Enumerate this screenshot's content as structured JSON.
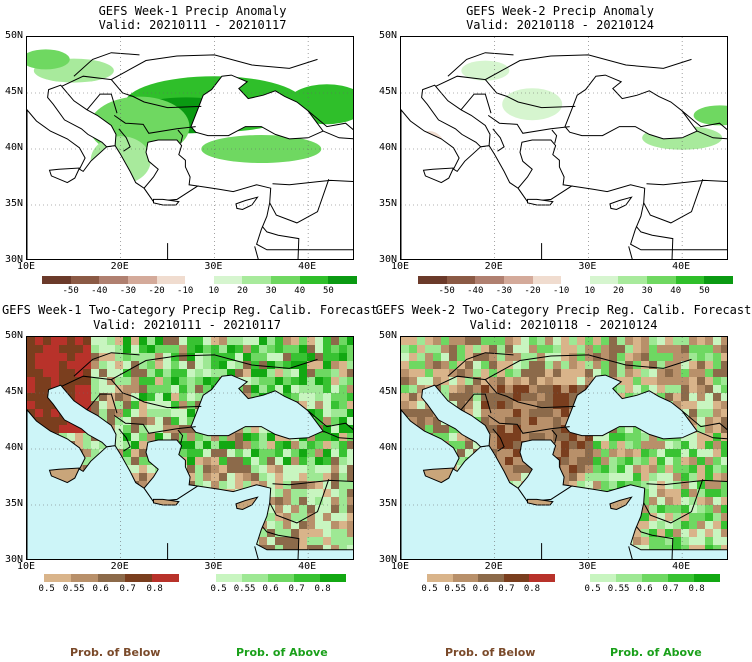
{
  "panels": [
    {
      "title": "GEFS Week-1 Precip Anomaly",
      "valid": "Valid: 20210111 - 20210117"
    },
    {
      "title": "GEFS Week-2 Precip Anomaly",
      "valid": "Valid: 20210118 - 20210124"
    },
    {
      "title": "GEFS Week-1 Two-Category Precip Reg. Calib. Forecast",
      "valid": "Valid: 20210111 - 20210117"
    },
    {
      "title": "GEFS Week-2 Two-Category Precip Reg. Calib. Forecast",
      "valid": "Valid: 20210118 - 20210124"
    }
  ],
  "axes": {
    "lat_labels": [
      "50N",
      "45N",
      "40N",
      "35N",
      "30N"
    ],
    "lon_labels": [
      "10E",
      "20E",
      "30E",
      "40E"
    ]
  },
  "anomaly_colorbar": {
    "labels": [
      "-50",
      "-40",
      "-30",
      "-20",
      "-10",
      "10",
      "20",
      "30",
      "40",
      "50"
    ],
    "colors": [
      "#6b3a2a",
      "#8b5a45",
      "#b08070",
      "#d4aa9a",
      "#f0dccf",
      "#ffffff",
      "#d6f5cf",
      "#a8ea9c",
      "#6fd861",
      "#2fbf2a",
      "#0a9a12"
    ]
  },
  "below_colorbar": {
    "labels": [
      "0.5",
      "0.55",
      "0.6",
      "0.7",
      "0.8"
    ],
    "colors": [
      "#d9b48a",
      "#b8906a",
      "#8c6a4a",
      "#7a3e1e",
      "#b8322a"
    ]
  },
  "above_colorbar": {
    "labels": [
      "0.5",
      "0.55",
      "0.6",
      "0.7",
      "0.8"
    ],
    "colors": [
      "#c8f5c0",
      "#9ee894",
      "#6ed862",
      "#38c232",
      "#12a812"
    ]
  },
  "legend": {
    "below": "Prob. of Below",
    "above": "Prob. of Above",
    "below_color": "#7a4a2a",
    "above_color": "#1aa01a"
  },
  "map_colors": {
    "sea": "#cdf5f8",
    "land_dry": "#c9a57a",
    "land_wet": "#66cc55",
    "land_white": "#ffffff",
    "mask": "#e0e0e0"
  }
}
